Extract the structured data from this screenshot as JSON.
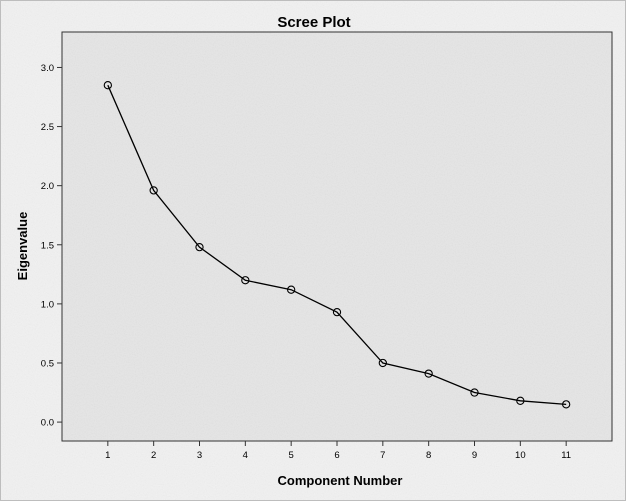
{
  "chart_data": {
    "type": "line",
    "title": "Scree Plot",
    "xlabel": "Component Number",
    "ylabel": "Eigenvalue",
    "x": [
      1,
      2,
      3,
      4,
      5,
      6,
      7,
      8,
      9,
      10,
      11
    ],
    "series": [
      {
        "values": [
          2.85,
          1.96,
          1.48,
          1.2,
          1.12,
          0.93,
          0.5,
          0.41,
          0.25,
          0.18,
          0.15
        ]
      }
    ],
    "x_tick_labels": [
      "1",
      "2",
      "3",
      "4",
      "5",
      "6",
      "7",
      "8",
      "9",
      "10",
      "11"
    ],
    "y_tick_labels": [
      "0.0",
      "0.5",
      "1.0",
      "1.5",
      "2.0",
      "2.5",
      "3.0"
    ],
    "y_ticks": [
      0.0,
      0.5,
      1.0,
      1.5,
      2.0,
      2.5,
      3.0
    ],
    "xlim": [
      0,
      12
    ],
    "ylim": [
      -0.16,
      3.3
    ],
    "grid": false,
    "marker": "open-circle",
    "line_color": "#000000",
    "plot_background": "#e6e6e6"
  }
}
